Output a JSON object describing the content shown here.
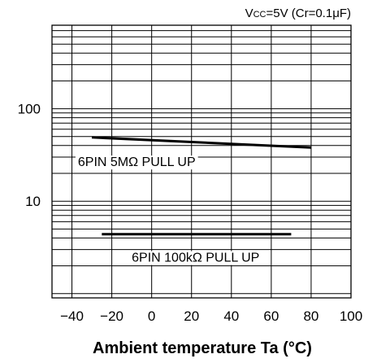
{
  "chart_data": {
    "type": "line",
    "title_prefix": "V",
    "title_sub": "CC",
    "title_rest": "=5V (Cr=0.1μF)",
    "xlabel": "Ambient temperature Ta (°C)",
    "ylabel": "",
    "yscale": "log",
    "xlim": [
      -50,
      100
    ],
    "ylim": [
      0.9,
      800
    ],
    "x_ticks": [
      -40,
      -20,
      0,
      20,
      40,
      60,
      80,
      100
    ],
    "x_tick_labels": [
      "−40",
      "−20",
      "0",
      "20",
      "40",
      "60",
      "80",
      "100"
    ],
    "y_tick_values": [
      10,
      100
    ],
    "y_tick_labels": [
      "10",
      "100"
    ],
    "grid": true,
    "series": [
      {
        "label": "6PIN 5MΩ PULL UP",
        "x": [
          -30,
          80
        ],
        "y": [
          49,
          38
        ]
      },
      {
        "label": "6PIN 100kΩ PULL UP",
        "x": [
          -25,
          70
        ],
        "y": [
          4.4,
          4.4
        ]
      }
    ]
  }
}
